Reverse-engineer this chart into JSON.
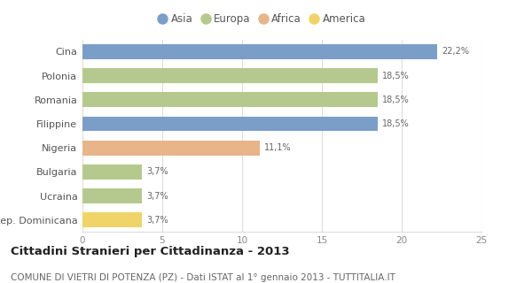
{
  "categories": [
    "Cina",
    "Polonia",
    "Romania",
    "Filippine",
    "Nigeria",
    "Bulgaria",
    "Ucraina",
    "Rep. Dominicana"
  ],
  "values": [
    22.2,
    18.5,
    18.5,
    18.5,
    11.1,
    3.7,
    3.7,
    3.7
  ],
  "labels": [
    "22,2%",
    "18,5%",
    "18,5%",
    "18,5%",
    "11,1%",
    "3,7%",
    "3,7%",
    "3,7%"
  ],
  "colors": [
    "#7b9ec9",
    "#b5c98e",
    "#b5c98e",
    "#7b9ec9",
    "#e8b48a",
    "#b5c98e",
    "#b5c98e",
    "#f0d46a"
  ],
  "legend": [
    {
      "label": "Asia",
      "color": "#7b9ec9"
    },
    {
      "label": "Europa",
      "color": "#b5c98e"
    },
    {
      "label": "Africa",
      "color": "#e8b48a"
    },
    {
      "label": "America",
      "color": "#f0d46a"
    }
  ],
  "xlim": [
    0,
    25
  ],
  "xticks": [
    0,
    5,
    10,
    15,
    20,
    25
  ],
  "title": "Cittadini Stranieri per Cittadinanza - 2013",
  "subtitle": "COMUNE DI VIETRI DI POTENZA (PZ) - Dati ISTAT al 1° gennaio 2013 - TUTTITALIA.IT",
  "title_fontsize": 9.5,
  "subtitle_fontsize": 7.5,
  "background_color": "#ffffff",
  "bar_height": 0.62
}
